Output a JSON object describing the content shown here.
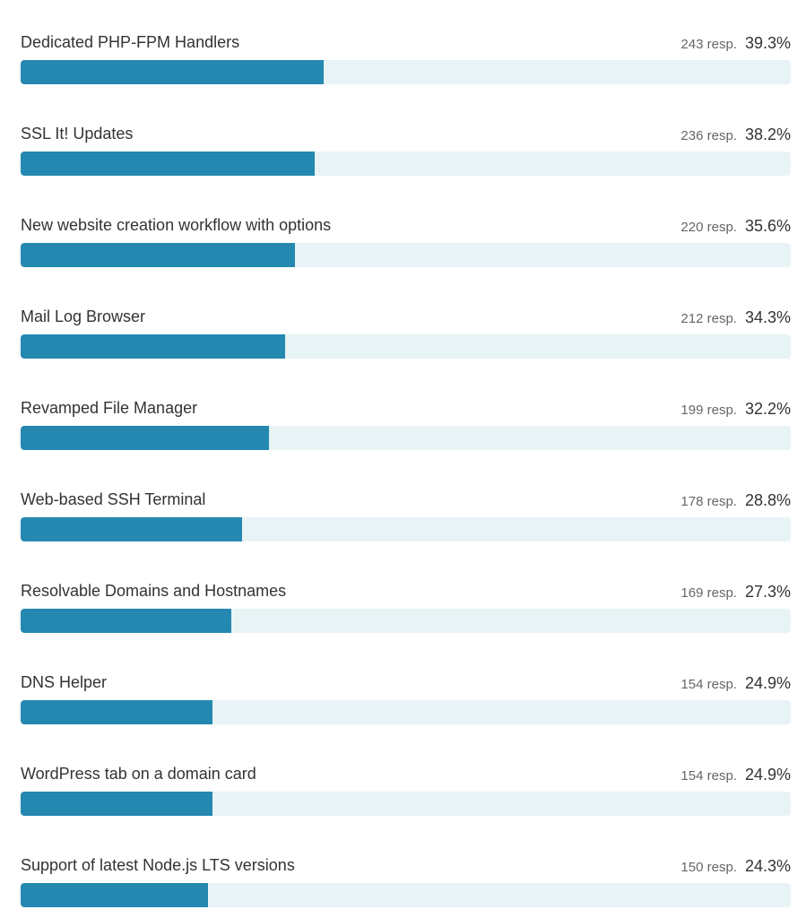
{
  "colors": {
    "fill": "#2488b0",
    "track": "#e8f3f6"
  },
  "max_percent": 100,
  "items": [
    {
      "label": "Dedicated PHP-FPM Handlers",
      "responses": "243 resp.",
      "percent_label": "39.3%",
      "percent": 39.3
    },
    {
      "label": "SSL It! Updates",
      "responses": "236 resp.",
      "percent_label": "38.2%",
      "percent": 38.2
    },
    {
      "label": "New website creation workflow with options",
      "responses": "220 resp.",
      "percent_label": "35.6%",
      "percent": 35.6
    },
    {
      "label": "Mail Log Browser",
      "responses": "212 resp.",
      "percent_label": "34.3%",
      "percent": 34.3
    },
    {
      "label": "Revamped File Manager",
      "responses": "199 resp.",
      "percent_label": "32.2%",
      "percent": 32.2
    },
    {
      "label": "Web-based SSH Terminal",
      "responses": "178 resp.",
      "percent_label": "28.8%",
      "percent": 28.8
    },
    {
      "label": "Resolvable Domains and Hostnames",
      "responses": "169 resp.",
      "percent_label": "27.3%",
      "percent": 27.3
    },
    {
      "label": "DNS Helper",
      "responses": "154 resp.",
      "percent_label": "24.9%",
      "percent": 24.9
    },
    {
      "label": "WordPress tab on a domain card",
      "responses": "154 resp.",
      "percent_label": "24.9%",
      "percent": 24.9
    },
    {
      "label": "Support of latest Node.js LTS versions",
      "responses": "150 resp.",
      "percent_label": "24.3%",
      "percent": 24.3
    }
  ]
}
